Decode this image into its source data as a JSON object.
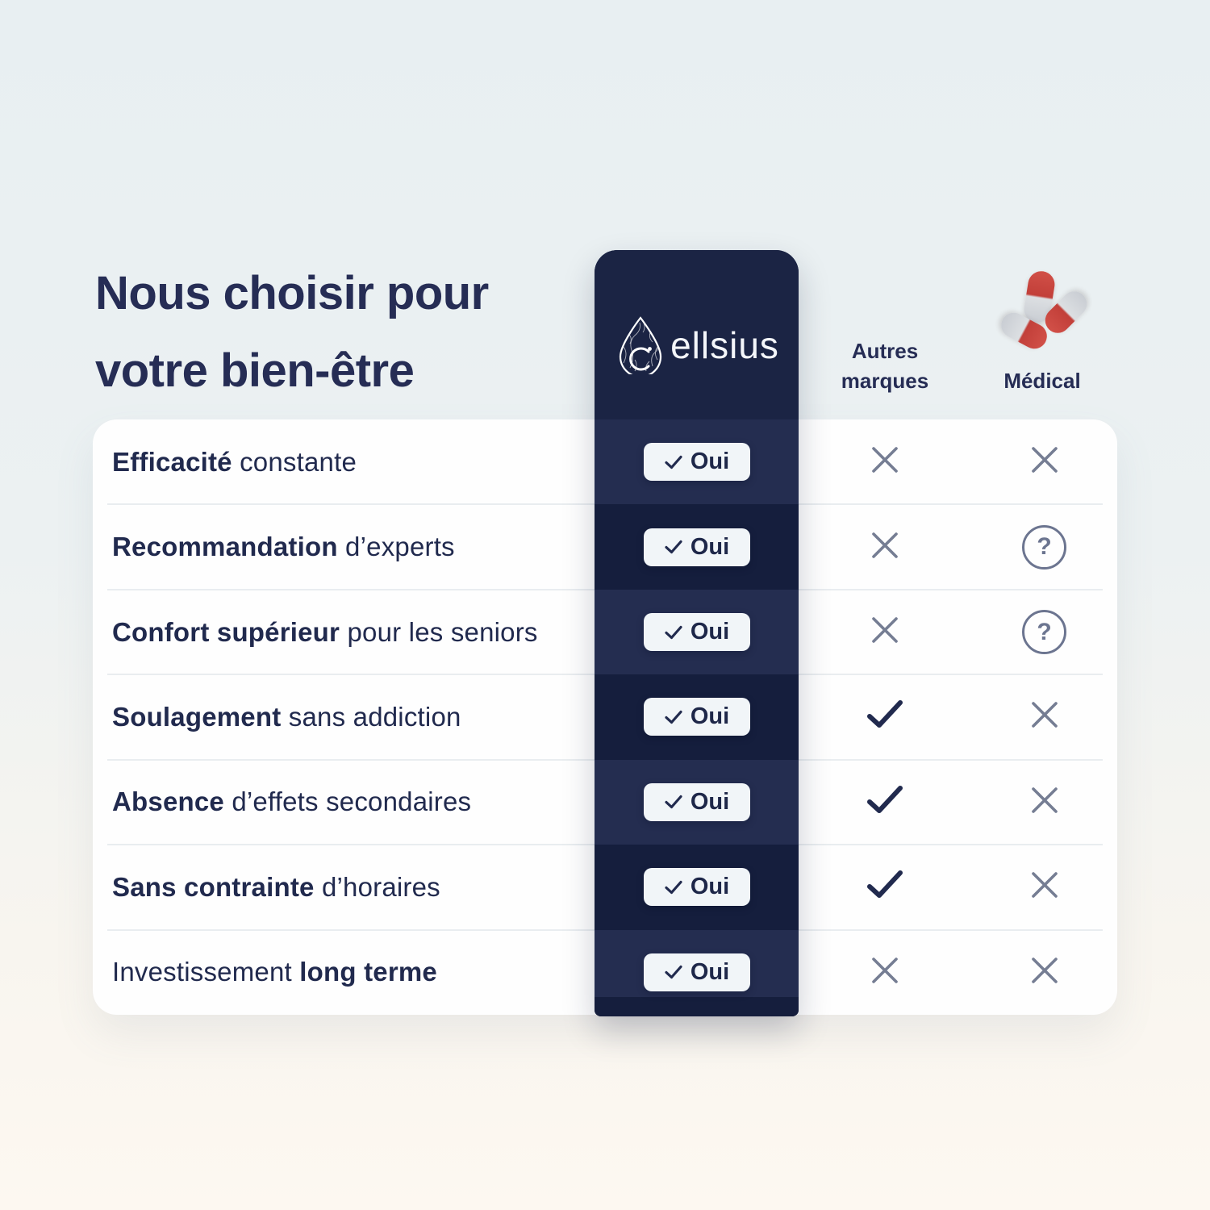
{
  "title": {
    "line1": "Nous choisir pour",
    "line2": "votre bien-être"
  },
  "brand": {
    "name": "ellsius",
    "logo_icon": "drop-neural-logo-icon"
  },
  "columns": {
    "autres_line1": "Autres",
    "autres_line2": "marques",
    "medical": "Médical",
    "medical_icon": "pills-icon"
  },
  "table": {
    "yes_label": "Oui",
    "yes_icon": "check-icon",
    "rows": [
      {
        "label": [
          {
            "text": "Efficacité",
            "bold": true
          },
          {
            "text": " constante",
            "bold": false
          }
        ],
        "cellsius": "Oui",
        "autres": "cross-icon",
        "medical": "cross-icon"
      },
      {
        "label": [
          {
            "text": "Recommandation",
            "bold": true
          },
          {
            "text": " d’experts",
            "bold": false
          }
        ],
        "cellsius": "Oui",
        "autres": "cross-icon",
        "medical": "question-icon"
      },
      {
        "label": [
          {
            "text": "Confort supérieur",
            "bold": true
          },
          {
            "text": " pour les seniors",
            "bold": false
          }
        ],
        "cellsius": "Oui",
        "autres": "cross-icon",
        "medical": "question-icon"
      },
      {
        "label": [
          {
            "text": "Soulagement",
            "bold": true
          },
          {
            "text": " sans addiction",
            "bold": false
          }
        ],
        "cellsius": "Oui",
        "autres": "check-icon",
        "medical": "cross-icon"
      },
      {
        "label": [
          {
            "text": "Absence",
            "bold": true
          },
          {
            "text": " d’effets secondaires",
            "bold": false
          }
        ],
        "cellsius": "Oui",
        "autres": "check-icon",
        "medical": "cross-icon"
      },
      {
        "label": [
          {
            "text": "Sans contrainte",
            "bold": true
          },
          {
            "text": " d’horaires",
            "bold": false
          }
        ],
        "cellsius": "Oui",
        "autres": "check-icon",
        "medical": "cross-icon"
      },
      {
        "label": [
          {
            "text": "Investissement",
            "bold": false
          },
          {
            "text": " long terme",
            "bold": true
          }
        ],
        "cellsius": "Oui",
        "autres": "cross-icon",
        "medical": "cross-icon"
      }
    ]
  },
  "colors": {
    "navy": "#1b2444",
    "navy_band_light": "#242d50",
    "navy_band_dark": "#151e3d",
    "text_navy": "#212a4e",
    "title_navy": "#262d55",
    "muted_gray": "#757d93",
    "question_gray": "#6c7590",
    "pill_red": "#c9453e",
    "pill_white": "#d6d9dd",
    "card_white": "#fefefe",
    "divider": "#e9edf0",
    "button_bg": "#f1f5f8",
    "bg_top": "#e8eff2",
    "bg_bottom": "#fdf8f1"
  }
}
